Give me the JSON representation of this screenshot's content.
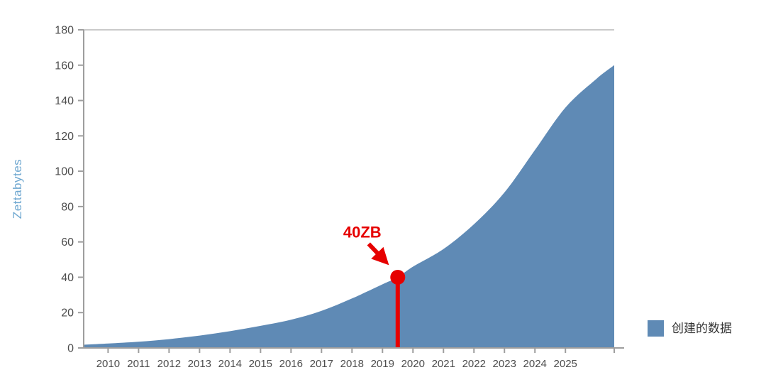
{
  "chart_data": {
    "type": "area",
    "title": "",
    "xlabel": "",
    "ylabel": "Zettabytes",
    "ylim": [
      0,
      180
    ],
    "yticks": [
      0,
      20,
      40,
      60,
      80,
      100,
      120,
      140,
      160,
      180
    ],
    "xlim": [
      2009.2,
      2026.6
    ],
    "categories": [
      2010,
      2011,
      2012,
      2013,
      2014,
      2015,
      2016,
      2017,
      2018,
      2019,
      2020,
      2021,
      2022,
      2023,
      2024,
      2025
    ],
    "grid": false,
    "series": [
      {
        "name": "创建的数据",
        "points": [
          [
            2009.2,
            1.8
          ],
          [
            2010,
            2.5
          ],
          [
            2011,
            3.5
          ],
          [
            2012,
            5
          ],
          [
            2013,
            7
          ],
          [
            2014,
            9.5
          ],
          [
            2015,
            12.5
          ],
          [
            2016,
            16
          ],
          [
            2017,
            21
          ],
          [
            2018,
            28
          ],
          [
            2019,
            36
          ],
          [
            2019.5,
            40
          ],
          [
            2020,
            46
          ],
          [
            2021,
            56
          ],
          [
            2022,
            70
          ],
          [
            2023,
            88
          ],
          [
            2024,
            112
          ],
          [
            2025,
            136
          ],
          [
            2026,
            152
          ],
          [
            2026.6,
            160
          ]
        ]
      }
    ],
    "annotation": {
      "label": "40ZB",
      "x": 2019.5,
      "y": 40
    },
    "legend": {
      "position": "bottom-right",
      "items": [
        {
          "label": "创建的数据",
          "color": "#5f8ab5"
        }
      ]
    },
    "colors": {
      "area": "#5f8ab5",
      "annotation": "#e60000",
      "axis": "#9e9e9e",
      "frame": "#b8b8b8",
      "tick_label": "#4d4d4d",
      "ylabel": "#6ea7d0",
      "legend_label": "#333333"
    }
  }
}
